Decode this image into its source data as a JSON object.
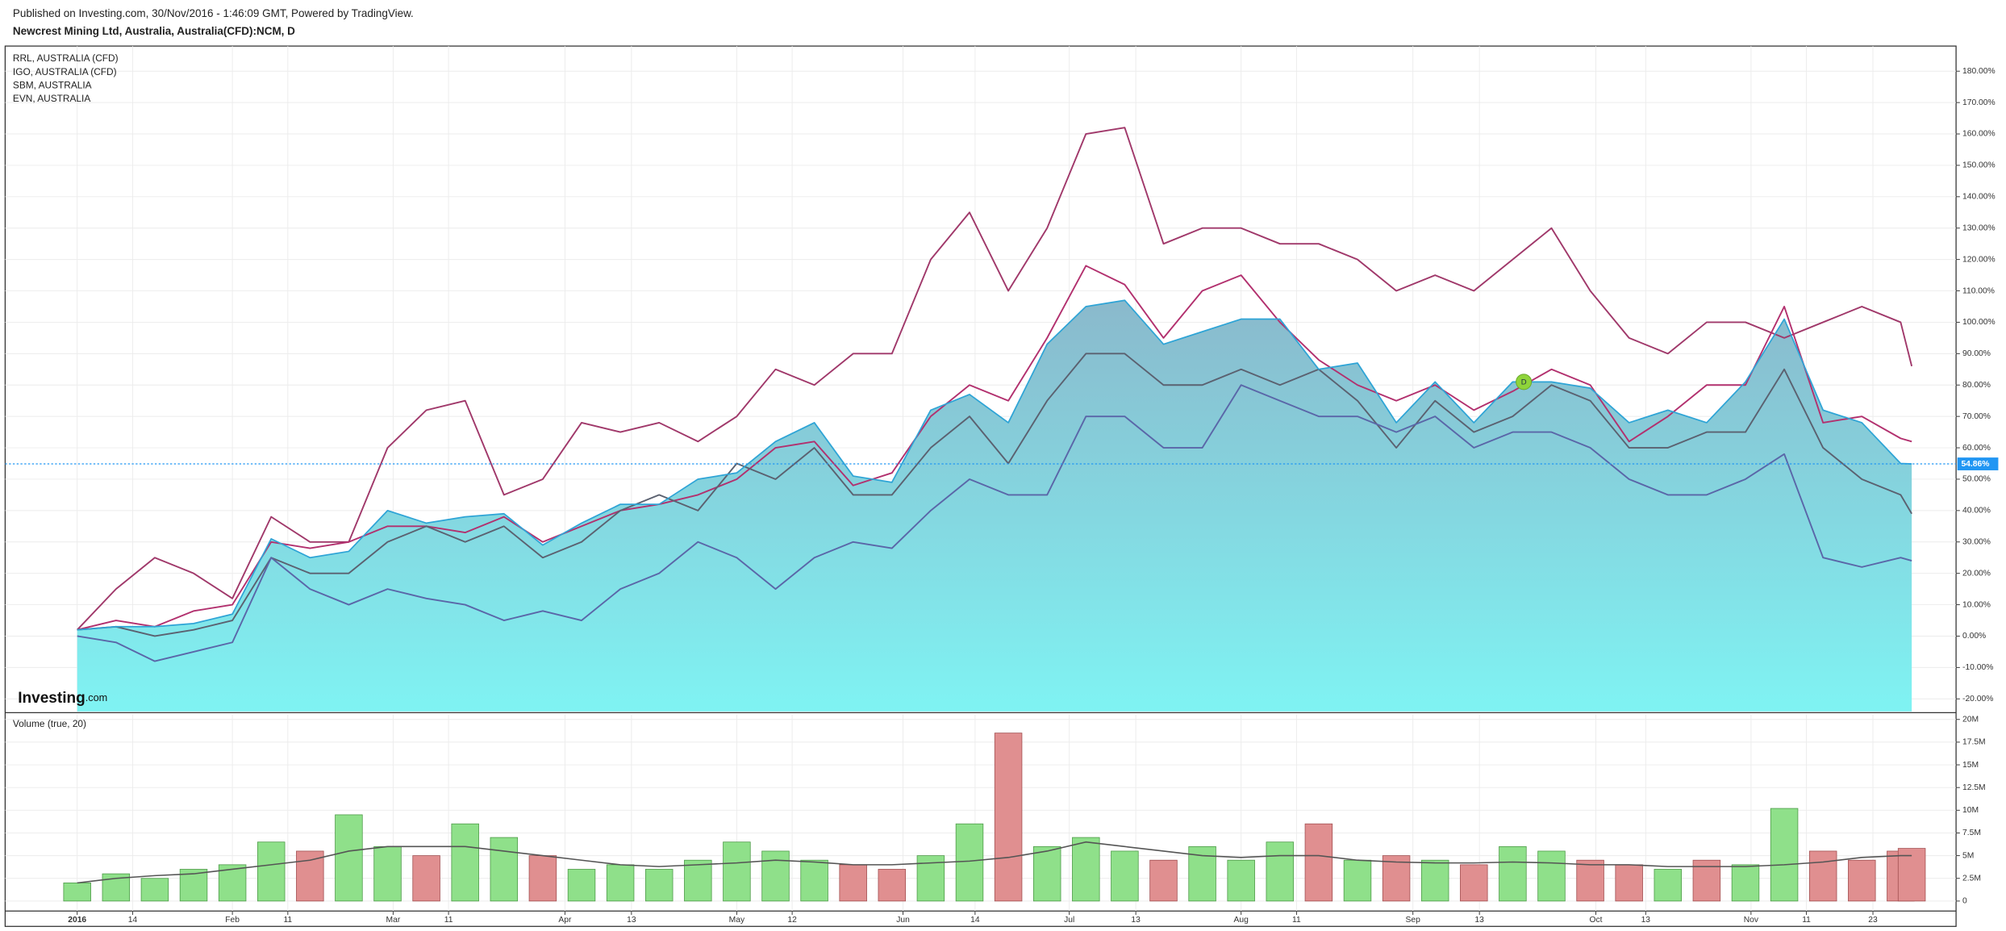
{
  "header": {
    "published": "Published on Investing.com, 30/Nov/2016 - 1:46:09 GMT, Powered by TradingView.",
    "title": "Newcrest Mining Ltd, Australia, Australia(CFD):NCM, D"
  },
  "chart_data": {
    "type": "line",
    "logo": [
      "Investing",
      ".com"
    ],
    "marker": {
      "label": "D",
      "x": "2016-09-21",
      "color": "#8fd43a"
    },
    "x": [
      "2016-01-04",
      "2016-01-11",
      "2016-01-18",
      "2016-01-25",
      "2016-02-01",
      "2016-02-08",
      "2016-02-15",
      "2016-02-22",
      "2016-02-29",
      "2016-03-07",
      "2016-03-14",
      "2016-03-21",
      "2016-03-28",
      "2016-04-04",
      "2016-04-11",
      "2016-04-18",
      "2016-04-25",
      "2016-05-02",
      "2016-05-09",
      "2016-05-16",
      "2016-05-23",
      "2016-05-30",
      "2016-06-06",
      "2016-06-13",
      "2016-06-20",
      "2016-06-27",
      "2016-07-04",
      "2016-07-11",
      "2016-07-18",
      "2016-07-25",
      "2016-08-01",
      "2016-08-08",
      "2016-08-15",
      "2016-08-22",
      "2016-08-29",
      "2016-09-05",
      "2016-09-12",
      "2016-09-19",
      "2016-09-26",
      "2016-10-03",
      "2016-10-10",
      "2016-10-17",
      "2016-10-24",
      "2016-10-31",
      "2016-11-07",
      "2016-11-14",
      "2016-11-21",
      "2016-11-28",
      "2016-11-30"
    ],
    "xlim": [
      "2015-12-22",
      "2016-12-08"
    ],
    "xticks": [
      {
        "value": "2016-01-04",
        "label": "2016"
      },
      {
        "value": "2016-01-14",
        "label": "14"
      },
      {
        "value": "2016-02-01",
        "label": "Feb"
      },
      {
        "value": "2016-02-11",
        "label": "11"
      },
      {
        "value": "2016-03-01",
        "label": "Mar"
      },
      {
        "value": "2016-03-11",
        "label": "11"
      },
      {
        "value": "2016-04-01",
        "label": "Apr"
      },
      {
        "value": "2016-04-13",
        "label": "13"
      },
      {
        "value": "2016-05-02",
        "label": "May"
      },
      {
        "value": "2016-05-12",
        "label": "12"
      },
      {
        "value": "2016-06-01",
        "label": "Jun"
      },
      {
        "value": "2016-06-14",
        "label": "14"
      },
      {
        "value": "2016-07-01",
        "label": "Jul"
      },
      {
        "value": "2016-07-13",
        "label": "13"
      },
      {
        "value": "2016-08-01",
        "label": "Aug"
      },
      {
        "value": "2016-08-11",
        "label": "11"
      },
      {
        "value": "2016-09-01",
        "label": "Sep"
      },
      {
        "value": "2016-09-13",
        "label": "13"
      },
      {
        "value": "2016-10-04",
        "label": "Oct"
      },
      {
        "value": "2016-10-13",
        "label": "13"
      },
      {
        "value": "2016-11-01",
        "label": "Nov"
      },
      {
        "value": "2016-11-11",
        "label": "11"
      },
      {
        "value": "2016-11-23",
        "label": "23"
      }
    ],
    "ylim": [
      -24,
      188
    ],
    "yticks": [
      {
        "value": -20,
        "label": "-20.00%"
      },
      {
        "value": -10,
        "label": "-10.00%"
      },
      {
        "value": 0,
        "label": "0.00%"
      },
      {
        "value": 10,
        "label": "10.00%"
      },
      {
        "value": 20,
        "label": "20.00%"
      },
      {
        "value": 30,
        "label": "30.00%"
      },
      {
        "value": 40,
        "label": "40.00%"
      },
      {
        "value": 50,
        "label": "50.00%"
      },
      {
        "value": 60,
        "label": "60.00%"
      },
      {
        "value": 70,
        "label": "70.00%"
      },
      {
        "value": 80,
        "label": "80.00%"
      },
      {
        "value": 90,
        "label": "90.00%"
      },
      {
        "value": 100,
        "label": "100.00%"
      },
      {
        "value": 110,
        "label": "110.00%"
      },
      {
        "value": 120,
        "label": "120.00%"
      },
      {
        "value": 130,
        "label": "130.00%"
      },
      {
        "value": 140,
        "label": "140.00%"
      },
      {
        "value": 150,
        "label": "150.00%"
      },
      {
        "value": 160,
        "label": "160.00%"
      },
      {
        "value": 170,
        "label": "170.00%"
      },
      {
        "value": 180,
        "label": "180.00%"
      }
    ],
    "grid": true,
    "last_value": {
      "value": 54.86,
      "label": "54.86%",
      "color": "#2196f3"
    },
    "main": {
      "color": "#2ea4d6",
      "fill": "#7ff3f3",
      "values": [
        2,
        3,
        3,
        4,
        7,
        31,
        25,
        27,
        40,
        36,
        38,
        39,
        29,
        36,
        42,
        42,
        50,
        52,
        62,
        68,
        51,
        49,
        72,
        77,
        68,
        93,
        105,
        107,
        93,
        97,
        101,
        101,
        85,
        87,
        68,
        81,
        68,
        81,
        81,
        79,
        68,
        72,
        68,
        81,
        101,
        72,
        68,
        55,
        54.86
      ]
    },
    "series": [
      {
        "name": "RRL, AUSTRALIA (CFD)",
        "color": "#a0386a",
        "values": [
          2,
          15,
          25,
          20,
          12,
          38,
          30,
          30,
          60,
          72,
          75,
          45,
          50,
          68,
          65,
          68,
          62,
          70,
          85,
          80,
          90,
          90,
          120,
          135,
          110,
          130,
          160,
          162,
          125,
          130,
          130,
          125,
          125,
          120,
          110,
          115,
          110,
          120,
          130,
          110,
          95,
          90,
          100,
          100,
          95,
          100,
          105,
          100,
          86
        ]
      },
      {
        "name": "IGO, AUSTRALIA (CFD)",
        "color": "#b2306e",
        "values": [
          2,
          5,
          3,
          8,
          10,
          30,
          28,
          30,
          35,
          35,
          33,
          38,
          30,
          35,
          40,
          42,
          45,
          50,
          60,
          62,
          48,
          52,
          70,
          80,
          75,
          95,
          118,
          112,
          95,
          110,
          115,
          100,
          88,
          80,
          75,
          80,
          72,
          78,
          85,
          80,
          62,
          70,
          80,
          80,
          105,
          68,
          70,
          63,
          62
        ]
      },
      {
        "name": "SBM, AUSTRALIA",
        "color": "#5b6170",
        "values": [
          2,
          3,
          0,
          2,
          5,
          25,
          20,
          20,
          30,
          35,
          30,
          35,
          25,
          30,
          40,
          45,
          40,
          55,
          50,
          60,
          45,
          45,
          60,
          70,
          55,
          75,
          90,
          90,
          80,
          80,
          85,
          80,
          85,
          75,
          60,
          75,
          65,
          70,
          80,
          75,
          60,
          60,
          65,
          65,
          85,
          60,
          50,
          45,
          39
        ]
      },
      {
        "name": "EVN, AUSTRALIA",
        "color": "#5a66a8",
        "values": [
          0,
          -2,
          -8,
          -5,
          -2,
          25,
          15,
          10,
          15,
          12,
          10,
          5,
          8,
          5,
          15,
          20,
          30,
          25,
          15,
          25,
          30,
          28,
          40,
          50,
          45,
          45,
          70,
          70,
          60,
          60,
          80,
          75,
          70,
          70,
          65,
          70,
          60,
          65,
          65,
          60,
          50,
          45,
          45,
          50,
          58,
          25,
          22,
          25,
          24
        ]
      }
    ],
    "volume": {
      "label": "Volume (true, 20)",
      "up_color": "#8fe08a",
      "down_color": "#e08f90",
      "ma_color": "#555555",
      "ylim": [
        -1.1,
        20.6
      ],
      "yticks": [
        0,
        {
          "value": 2.5,
          "label": "2.5M"
        },
        {
          "value": 5,
          "label": "5M"
        },
        {
          "value": 7.5,
          "label": "7.5M"
        },
        {
          "value": 10,
          "label": "10M"
        },
        {
          "value": 12.5,
          "label": "12.5M"
        },
        {
          "value": 15,
          "label": "15M"
        },
        {
          "value": 17.5,
          "label": "17.5M"
        },
        {
          "value": 20,
          "label": "20M"
        }
      ],
      "values": [
        2.0,
        3.0,
        2.5,
        3.5,
        4.0,
        6.5,
        5.5,
        9.5,
        6.0,
        5.0,
        8.5,
        7.0,
        5.0,
        3.5,
        4.0,
        3.5,
        4.5,
        6.5,
        5.5,
        4.5,
        4.0,
        3.5,
        5.0,
        8.5,
        18.5,
        6.0,
        7.0,
        5.5,
        4.5,
        6.0,
        4.5,
        6.5,
        8.5,
        4.5,
        5.0,
        4.5,
        4.0,
        6.0,
        5.5,
        4.5,
        4.0,
        3.5,
        4.5,
        4.0,
        10.2,
        5.5,
        4.5,
        5.5,
        5.8
      ],
      "ma": [
        2,
        2.5,
        2.8,
        3,
        3.5,
        4,
        4.5,
        5.5,
        6,
        6,
        6,
        5.5,
        5,
        4.5,
        4,
        3.8,
        4,
        4.2,
        4.5,
        4.3,
        4,
        4,
        4.2,
        4.4,
        4.8,
        5.5,
        6.5,
        6,
        5.5,
        5,
        4.8,
        5,
        5,
        4.5,
        4.3,
        4.2,
        4.2,
        4.3,
        4.2,
        4,
        4,
        3.8,
        3.8,
        3.8,
        4,
        4.3,
        4.8,
        5,
        5
      ]
    }
  }
}
